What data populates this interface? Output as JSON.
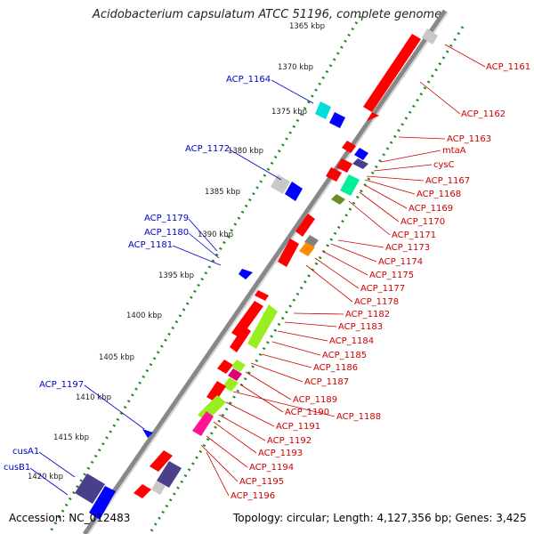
{
  "title": "Acidobacterium capsulatum ATCC 51196, complete genome",
  "footer": {
    "accession": "Accession: NC_012483",
    "topology": "Topology: circular; Length: 4,127,356 bp; Genes: 3,425"
  },
  "colors": {
    "forward_label": "#cc0000",
    "reverse_label": "#0000cc",
    "backbone": "#888888",
    "ticks": "#1a8a1a"
  },
  "scale_ticks": [
    "1365 kbp",
    "1370 kbp",
    "1375 kbp",
    "1380 kbp",
    "1385 kbp",
    "1390 kbp",
    "1395 kbp",
    "1400 kbp",
    "1405 kbp",
    "1410 kbp",
    "1415 kbp",
    "1420 kbp"
  ],
  "reverse_genes": [
    "ACP_1164",
    "ACP_1172",
    "ACP_1179",
    "ACP_1180",
    "ACP_1181",
    "ACP_1197",
    "cusA1",
    "cusB1"
  ],
  "forward_genes": [
    "ACP_1161",
    "ACP_1162",
    "ACP_1163",
    "mtaA",
    "cysC",
    "ACP_1167",
    "ACP_1168",
    "ACP_1169",
    "ACP_1170",
    "ACP_1171",
    "ACP_1173",
    "ACP_1174",
    "ACP_1175",
    "ACP_1177",
    "ACP_1178",
    "ACP_1182",
    "ACP_1183",
    "ACP_1184",
    "ACP_1185",
    "ACP_1186",
    "ACP_1187",
    "ACP_1189",
    "ACP_1190",
    "ACP_1188",
    "ACP_1191",
    "ACP_1192",
    "ACP_1193",
    "ACP_1194",
    "ACP_1195",
    "ACP_1196"
  ]
}
